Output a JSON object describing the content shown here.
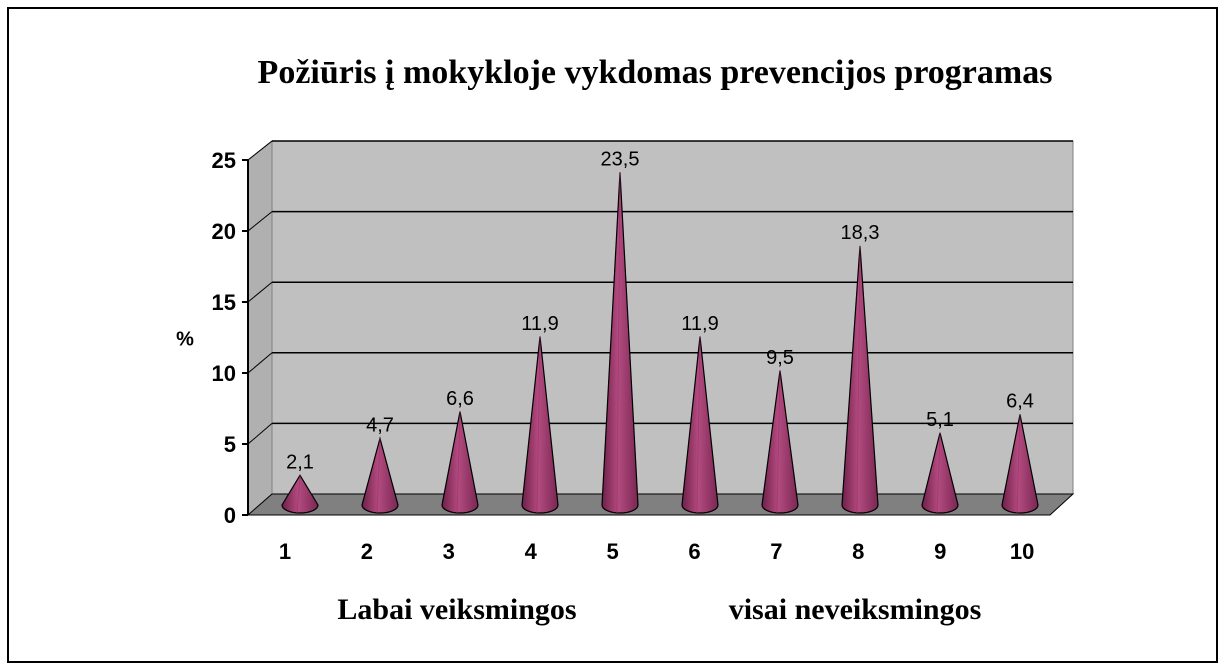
{
  "chart_data": {
    "type": "cone",
    "title": "Požiūris į mokykloje vykdomas prevencijos programas",
    "ylabel": "%",
    "xlabel_left": "Labai veiksmingos",
    "xlabel_right": "visai neveiksmingos",
    "categories": [
      "1",
      "2",
      "3",
      "4",
      "5",
      "6",
      "7",
      "8",
      "9",
      "10"
    ],
    "values": [
      2.1,
      4.7,
      6.6,
      11.9,
      23.5,
      11.9,
      9.5,
      18.3,
      5.1,
      6.4
    ],
    "value_labels": [
      "2,1",
      "4,7",
      "6,6",
      "11,9",
      "23,5",
      "11,9",
      "9,5",
      "18,3",
      "5,1",
      "6,4"
    ],
    "color": "#993366",
    "ylim": [
      0,
      25
    ],
    "yticks": [
      0,
      5,
      10,
      15,
      20,
      25
    ],
    "grid": true
  }
}
